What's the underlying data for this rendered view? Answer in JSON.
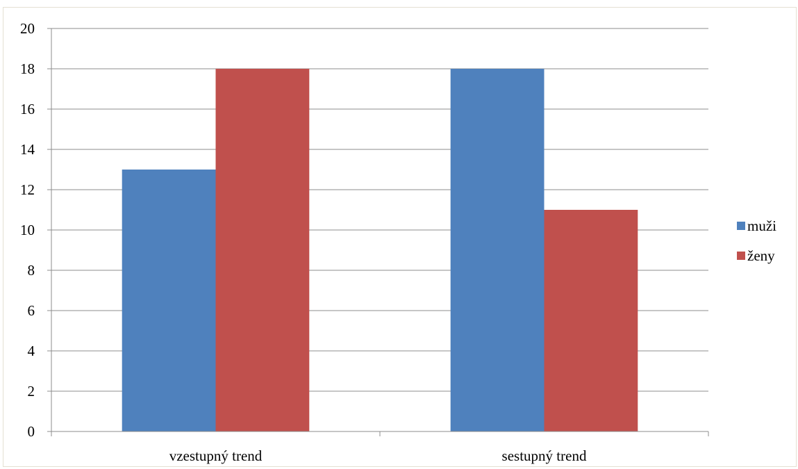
{
  "chart_data": {
    "type": "bar",
    "categories": [
      "vzestupný trend",
      "sestupný trend"
    ],
    "series": [
      {
        "name": "muži",
        "values": [
          13,
          18
        ],
        "color": "#4f81bd"
      },
      {
        "name": "ženy",
        "values": [
          18,
          11
        ],
        "color": "#c0504d"
      }
    ],
    "ylim": [
      0,
      20
    ],
    "ytick_step": 2,
    "grid": true,
    "legend_position": "right",
    "title": "",
    "xlabel": "",
    "ylabel": ""
  }
}
